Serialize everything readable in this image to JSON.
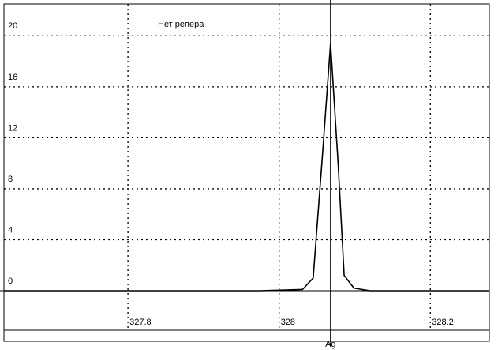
{
  "chart_data": {
    "type": "line",
    "title": "Нет репера",
    "x": [
      327.636,
      327.974,
      328.031,
      328.045,
      328.057,
      328.068,
      328.078,
      328.086,
      328.099,
      328.12,
      328.15,
      328.278
    ],
    "series": [
      {
        "color": "#000000",
        "values": [
          0,
          0,
          0.1,
          1,
          10.4,
          19.4,
          10,
          1.2,
          0.2,
          0,
          0,
          0
        ]
      }
    ],
    "xlim": [
      327.636,
      328.278
    ],
    "ylim": [
      0,
      22.5
    ],
    "xticks": [
      327.8,
      328,
      328.2
    ],
    "yticks": [
      0,
      4,
      8,
      12,
      16,
      20
    ],
    "grid": true,
    "cursor_x": 328.068,
    "cursor_label": "Ag"
  }
}
